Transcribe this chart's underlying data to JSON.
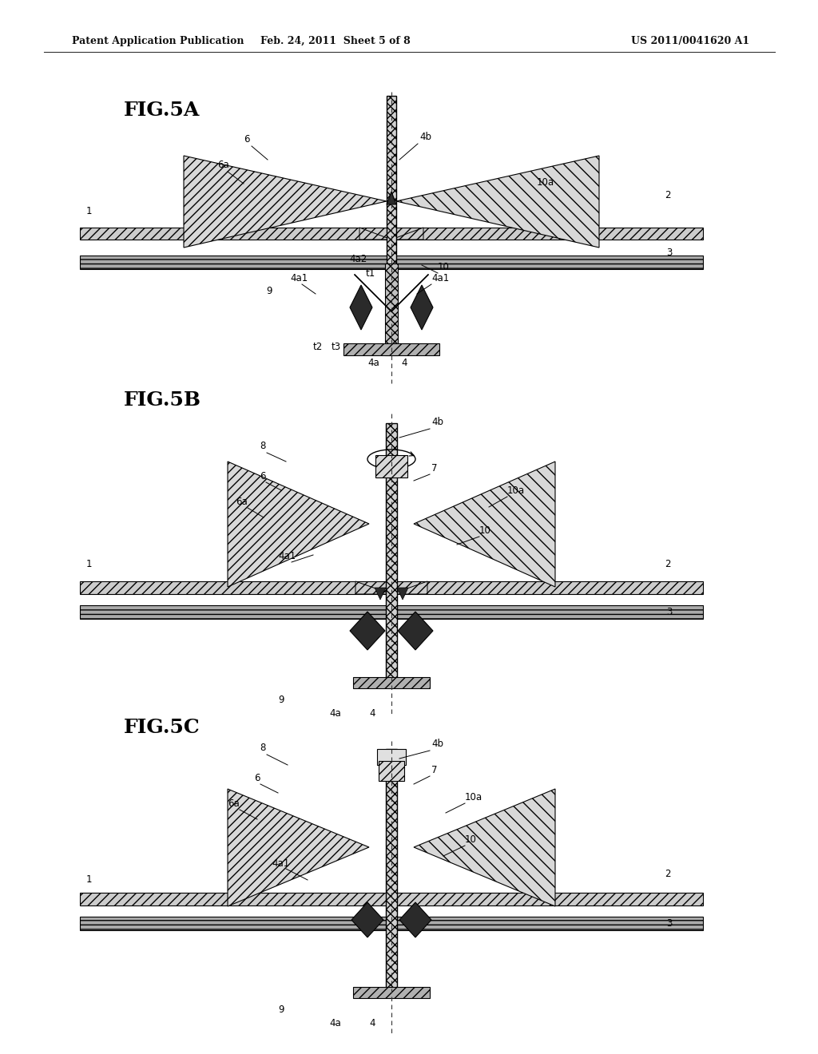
{
  "header_left": "Patent Application Publication",
  "header_mid": "Feb. 24, 2011  Sheet 5 of 8",
  "header_right": "US 2011/0041620 A1",
  "fig5a_label": "FIG.5A",
  "fig5b_label": "FIG.5B",
  "fig5c_label": "FIG.5C",
  "bg_color": "#ffffff",
  "line_color": "#000000",
  "dark_fill": "#2a2a2a",
  "hatch_light": "#cccccc",
  "hatch_mid": "#999999",
  "hatch_dark": "#b0b0b0"
}
